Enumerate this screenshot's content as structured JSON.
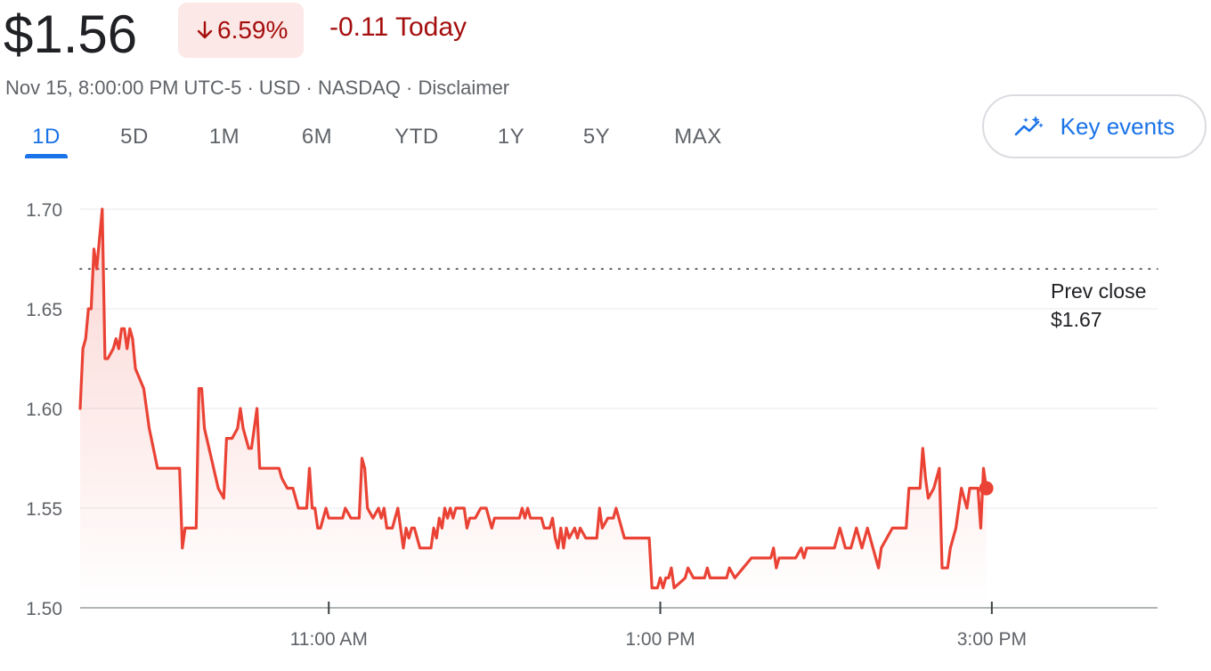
{
  "header": {
    "price": "$1.56",
    "percent_change": "6.59%",
    "change_text": "-0.11 Today",
    "meta": {
      "timestamp": "Nov 15, 8:00:00 PM UTC-5",
      "currency": "USD",
      "exchange": "NASDAQ",
      "disclaimer": "Disclaimer"
    }
  },
  "tabs": [
    {
      "label": "1D",
      "active": true
    },
    {
      "label": "5D"
    },
    {
      "label": "1M"
    },
    {
      "label": "6M"
    },
    {
      "label": "YTD"
    },
    {
      "label": "1Y"
    },
    {
      "label": "5Y"
    },
    {
      "label": "MAX"
    }
  ],
  "key_events": {
    "label": "Key events",
    "icon": "sparkle-chart-icon"
  },
  "colors": {
    "down": "#a50e0e",
    "line": "#ea4335",
    "accent": "#1a73e8"
  },
  "chart_data": {
    "type": "line",
    "x_unit": "time of day",
    "x_range": [
      "09:30",
      "16:00"
    ],
    "ylim": [
      1.5,
      1.7
    ],
    "y_ticks": [
      "1.70",
      "1.65",
      "1.60",
      "1.55",
      "1.50"
    ],
    "x_ticks": [
      {
        "time": "11:00",
        "label": "11:00 AM"
      },
      {
        "time": "13:00",
        "label": "1:00 PM"
      },
      {
        "time": "15:00",
        "label": "3:00 PM"
      }
    ],
    "prev_close": {
      "label": "Prev close",
      "value_label": "$1.67",
      "value": 1.67
    },
    "grid": true,
    "series": [
      {
        "points": [
          [
            "09:30",
            1.6
          ],
          [
            "09:31",
            1.63
          ],
          [
            "09:32",
            1.635
          ],
          [
            "09:33",
            1.65
          ],
          [
            "09:34",
            1.65
          ],
          [
            "09:35",
            1.68
          ],
          [
            "09:36",
            1.67
          ],
          [
            "09:38",
            1.7
          ],
          [
            "09:39",
            1.625
          ],
          [
            "09:40",
            1.625
          ],
          [
            "09:42",
            1.63
          ],
          [
            "09:43",
            1.635
          ],
          [
            "09:44",
            1.63
          ],
          [
            "09:45",
            1.64
          ],
          [
            "09:46",
            1.64
          ],
          [
            "09:47",
            1.63
          ],
          [
            "09:48",
            1.64
          ],
          [
            "09:49",
            1.635
          ],
          [
            "09:50",
            1.62
          ],
          [
            "09:53",
            1.61
          ],
          [
            "09:55",
            1.59
          ],
          [
            "09:58",
            1.57
          ],
          [
            "10:00",
            1.57
          ],
          [
            "10:06",
            1.57
          ],
          [
            "10:07",
            1.53
          ],
          [
            "10:08",
            1.54
          ],
          [
            "10:12",
            1.54
          ],
          [
            "10:13",
            1.61
          ],
          [
            "10:14",
            1.61
          ],
          [
            "10:15",
            1.59
          ],
          [
            "10:20",
            1.56
          ],
          [
            "10:22",
            1.555
          ],
          [
            "10:23",
            1.585
          ],
          [
            "10:25",
            1.585
          ],
          [
            "10:27",
            1.59
          ],
          [
            "10:28",
            1.6
          ],
          [
            "10:29",
            1.59
          ],
          [
            "10:31",
            1.58
          ],
          [
            "10:32",
            1.58
          ],
          [
            "10:34",
            1.6
          ],
          [
            "10:35",
            1.57
          ],
          [
            "10:42",
            1.57
          ],
          [
            "10:43",
            1.565
          ],
          [
            "10:45",
            1.56
          ],
          [
            "10:47",
            1.56
          ],
          [
            "10:49",
            1.55
          ],
          [
            "10:52",
            1.55
          ],
          [
            "10:53",
            1.57
          ],
          [
            "10:54",
            1.55
          ],
          [
            "10:55",
            1.55
          ],
          [
            "10:56",
            1.54
          ],
          [
            "10:57",
            1.54
          ],
          [
            "10:59",
            1.55
          ],
          [
            "11:00",
            1.545
          ],
          [
            "11:05",
            1.545
          ],
          [
            "11:06",
            1.55
          ],
          [
            "11:08",
            1.545
          ],
          [
            "11:11",
            1.545
          ],
          [
            "11:12",
            1.575
          ],
          [
            "11:13",
            1.57
          ],
          [
            "11:14",
            1.55
          ],
          [
            "11:16",
            1.545
          ],
          [
            "11:18",
            1.55
          ],
          [
            "11:19",
            1.545
          ],
          [
            "11:20",
            1.55
          ],
          [
            "11:21",
            1.54
          ],
          [
            "11:23",
            1.54
          ],
          [
            "11:25",
            1.55
          ],
          [
            "11:26",
            1.54
          ],
          [
            "11:27",
            1.53
          ],
          [
            "11:28",
            1.54
          ],
          [
            "11:29",
            1.535
          ],
          [
            "11:30",
            1.54
          ],
          [
            "11:31",
            1.54
          ],
          [
            "11:32",
            1.535
          ],
          [
            "11:33",
            1.53
          ],
          [
            "11:37",
            1.53
          ],
          [
            "11:38",
            1.54
          ],
          [
            "11:39",
            1.535
          ],
          [
            "11:40",
            1.545
          ],
          [
            "11:41",
            1.54
          ],
          [
            "11:42",
            1.55
          ],
          [
            "11:43",
            1.545
          ],
          [
            "11:44",
            1.55
          ],
          [
            "11:45",
            1.545
          ],
          [
            "11:46",
            1.55
          ],
          [
            "11:49",
            1.55
          ],
          [
            "11:50",
            1.54
          ],
          [
            "11:51",
            1.545
          ],
          [
            "11:53",
            1.545
          ],
          [
            "11:55",
            1.55
          ],
          [
            "11:57",
            1.55
          ],
          [
            "11:59",
            1.54
          ],
          [
            "12:00",
            1.545
          ],
          [
            "12:09",
            1.545
          ],
          [
            "12:10",
            1.55
          ],
          [
            "12:11",
            1.545
          ],
          [
            "12:12",
            1.55
          ],
          [
            "12:13",
            1.545
          ],
          [
            "12:17",
            1.545
          ],
          [
            "12:18",
            1.54
          ],
          [
            "12:20",
            1.54
          ],
          [
            "12:21",
            1.545
          ],
          [
            "12:22",
            1.535
          ],
          [
            "12:23",
            1.53
          ],
          [
            "12:24",
            1.54
          ],
          [
            "12:25",
            1.53
          ],
          [
            "12:26",
            1.54
          ],
          [
            "12:27",
            1.535
          ],
          [
            "12:29",
            1.54
          ],
          [
            "12:30",
            1.535
          ],
          [
            "12:31",
            1.54
          ],
          [
            "12:33",
            1.535
          ],
          [
            "12:37",
            1.535
          ],
          [
            "12:38",
            1.55
          ],
          [
            "12:39",
            1.54
          ],
          [
            "12:41",
            1.545
          ],
          [
            "12:43",
            1.545
          ],
          [
            "12:44",
            1.55
          ],
          [
            "12:45",
            1.545
          ],
          [
            "12:47",
            1.535
          ],
          [
            "12:56",
            1.535
          ],
          [
            "12:57",
            1.51
          ],
          [
            "12:59",
            1.51
          ],
          [
            "13:00",
            1.515
          ],
          [
            "13:01",
            1.51
          ],
          [
            "13:02",
            1.515
          ],
          [
            "13:03",
            1.515
          ],
          [
            "13:04",
            1.52
          ],
          [
            "13:05",
            1.51
          ],
          [
            "13:09",
            1.515
          ],
          [
            "13:10",
            1.52
          ],
          [
            "13:12",
            1.515
          ],
          [
            "13:14",
            1.515
          ],
          [
            "13:16",
            1.515
          ],
          [
            "13:17",
            1.52
          ],
          [
            "13:18",
            1.515
          ],
          [
            "13:23",
            1.515
          ],
          [
            "13:24",
            1.515
          ],
          [
            "13:25",
            1.52
          ],
          [
            "13:27",
            1.515
          ],
          [
            "13:30",
            1.52
          ],
          [
            "13:33",
            1.525
          ],
          [
            "13:40",
            1.525
          ],
          [
            "13:41",
            1.53
          ],
          [
            "13:42",
            1.52
          ],
          [
            "13:43",
            1.525
          ],
          [
            "13:45",
            1.525
          ],
          [
            "13:47",
            1.525
          ],
          [
            "13:49",
            1.525
          ],
          [
            "13:51",
            1.53
          ],
          [
            "13:52",
            1.525
          ],
          [
            "13:53",
            1.53
          ],
          [
            "13:55",
            1.53
          ],
          [
            "13:57",
            1.53
          ],
          [
            "13:59",
            1.53
          ],
          [
            "14:00",
            1.53
          ],
          [
            "14:02",
            1.53
          ],
          [
            "14:03",
            1.53
          ],
          [
            "14:05",
            1.54
          ],
          [
            "14:06",
            1.535
          ],
          [
            "14:07",
            1.53
          ],
          [
            "14:09",
            1.53
          ],
          [
            "14:11",
            1.54
          ],
          [
            "14:12",
            1.535
          ],
          [
            "14:13",
            1.53
          ],
          [
            "14:14",
            1.535
          ],
          [
            "14:15",
            1.54
          ],
          [
            "14:17",
            1.53
          ],
          [
            "14:19",
            1.52
          ],
          [
            "14:20",
            1.53
          ],
          [
            "14:24",
            1.54
          ],
          [
            "14:29",
            1.54
          ],
          [
            "14:30",
            1.56
          ],
          [
            "14:31",
            1.56
          ],
          [
            "14:34",
            1.56
          ],
          [
            "14:35",
            1.58
          ],
          [
            "14:36",
            1.565
          ],
          [
            "14:37",
            1.555
          ],
          [
            "14:39",
            1.56
          ],
          [
            "14:41",
            1.57
          ],
          [
            "14:42",
            1.52
          ],
          [
            "14:44",
            1.52
          ],
          [
            "14:45",
            1.53
          ],
          [
            "14:46",
            1.535
          ],
          [
            "14:47",
            1.54
          ],
          [
            "14:48",
            1.55
          ],
          [
            "14:49",
            1.56
          ],
          [
            "14:50",
            1.555
          ],
          [
            "14:51",
            1.55
          ],
          [
            "14:52",
            1.56
          ],
          [
            "14:55",
            1.56
          ],
          [
            "14:56",
            1.54
          ],
          [
            "14:57",
            1.57
          ],
          [
            "14:58",
            1.56
          ]
        ]
      }
    ]
  }
}
